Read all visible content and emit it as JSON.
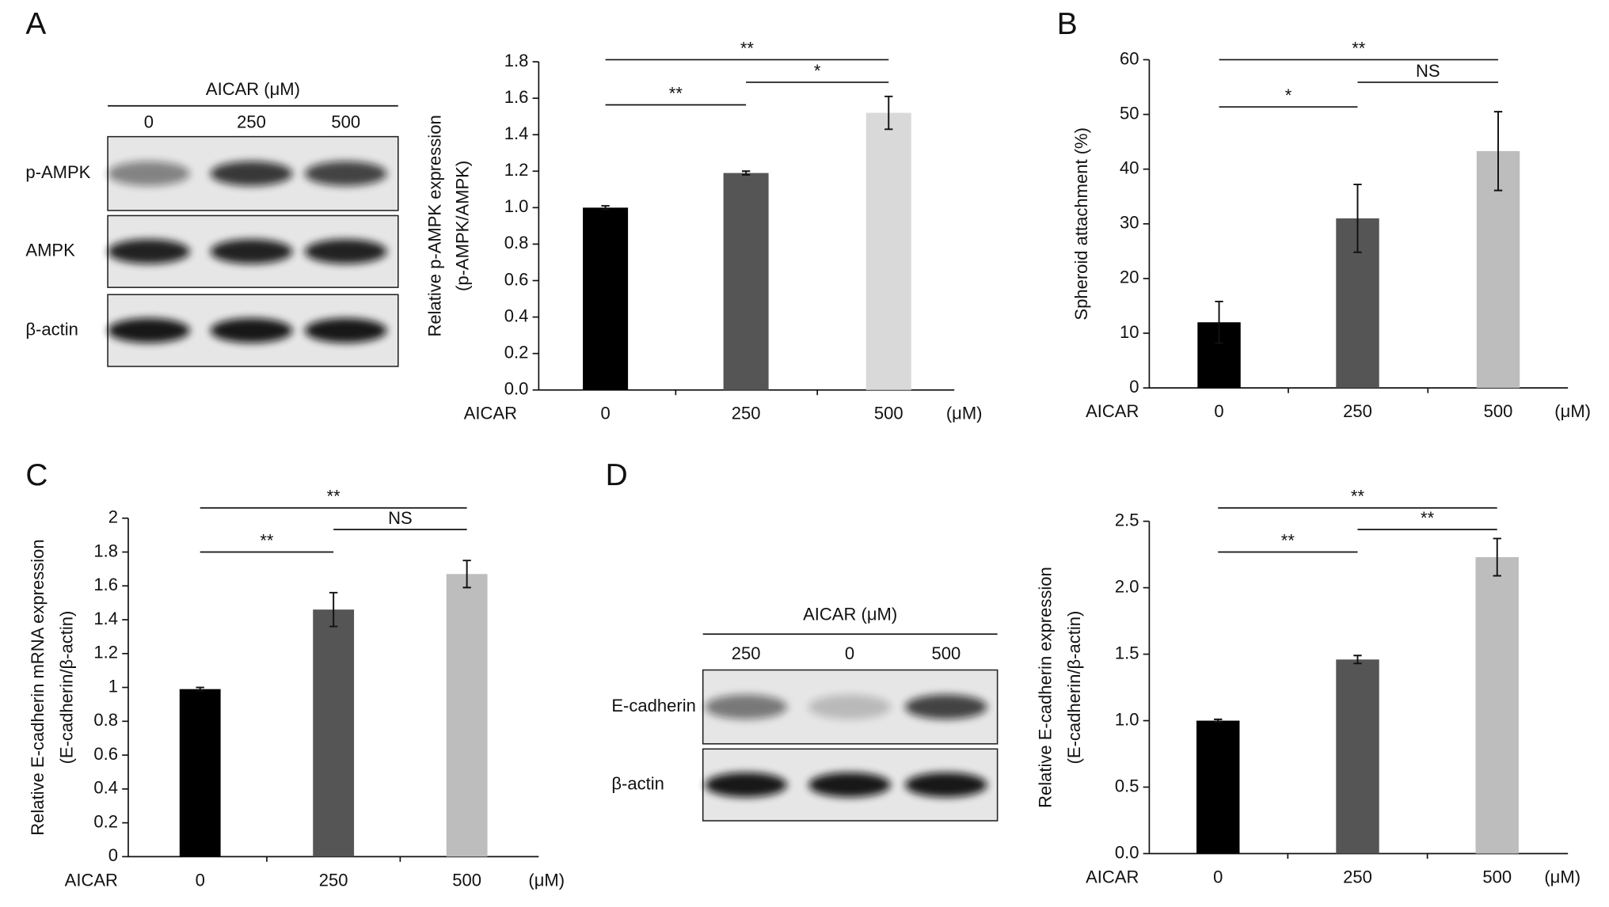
{
  "chart_data": [
    {
      "type": "bar",
      "panel": "A",
      "ylabel": [
        "Relative p-AMPK expression",
        "(p-AMPK/AMPK)"
      ],
      "xlabel": "AICAR",
      "unit": "(μM)",
      "categories": [
        "0",
        "250",
        "500"
      ],
      "values": [
        1.0,
        1.19,
        1.52
      ],
      "errors": [
        0.01,
        0.01,
        0.09
      ],
      "colors": [
        "#000000",
        "#555555",
        "#d9d9d9"
      ],
      "ylim": [
        0,
        1.8
      ],
      "yticks": [
        {
          "value": 0,
          "label": "0.0"
        },
        0.2,
        0.4,
        0.6,
        0.8,
        {
          "value": 1,
          "label": "1.0"
        },
        1.2,
        1.4,
        1.6,
        1.8
      ],
      "annotations": [
        {
          "text": "**",
          "from": 0,
          "to": 2
        },
        {
          "text": "**",
          "from": 0,
          "to": 1
        },
        {
          "text": "*",
          "from": 1,
          "to": 2
        }
      ]
    },
    {
      "type": "bar",
      "panel": "B",
      "ylabel": [
        "Spheroid attachment (%)"
      ],
      "xlabel": "AICAR",
      "unit": "(μM)",
      "categories": [
        "0",
        "250",
        "500"
      ],
      "values": [
        12,
        31,
        43.3
      ],
      "errors": [
        3.8,
        6.2,
        7.2
      ],
      "colors": [
        "#000000",
        "#555555",
        "#bdbdbd"
      ],
      "ylim": [
        0,
        60
      ],
      "yticks": [
        0,
        10,
        20,
        30,
        40,
        50,
        60
      ],
      "annotations": [
        {
          "text": "**",
          "from": 0,
          "to": 2
        },
        {
          "text": "*",
          "from": 0,
          "to": 1
        },
        {
          "text": "NS",
          "from": 1,
          "to": 2
        }
      ]
    },
    {
      "type": "bar",
      "panel": "C",
      "ylabel": [
        "Relative E-cadherin mRNA expression",
        "(E-cadherin/β-actin)"
      ],
      "xlabel": "AICAR",
      "unit": "(μM)",
      "categories": [
        "0",
        "250",
        "500"
      ],
      "values": [
        0.99,
        1.46,
        1.67
      ],
      "errors": [
        0.01,
        0.1,
        0.08
      ],
      "colors": [
        "#000000",
        "#555555",
        "#bdbdbd"
      ],
      "ylim": [
        0,
        2
      ],
      "yticks": [
        0,
        0.2,
        0.4,
        0.6,
        0.8,
        1,
        1.2,
        1.4,
        1.6,
        1.8,
        2
      ],
      "annotations": [
        {
          "text": "**",
          "from": 0,
          "to": 2
        },
        {
          "text": "**",
          "from": 0,
          "to": 1
        },
        {
          "text": "NS",
          "from": 1,
          "to": 2
        }
      ]
    },
    {
      "type": "bar",
      "panel": "D",
      "ylabel": [
        "Relative E-cadherin expression",
        "(E-cadherin/β-actin)"
      ],
      "xlabel": "AICAR",
      "unit": "(μM)",
      "categories": [
        "0",
        "250",
        "500"
      ],
      "values": [
        1.0,
        1.46,
        2.23
      ],
      "errors": [
        0.01,
        0.03,
        0.14
      ],
      "colors": [
        "#000000",
        "#555555",
        "#bdbdbd"
      ],
      "ylim": [
        0,
        2.5
      ],
      "yticks": [
        {
          "value": 0,
          "label": "0.0"
        },
        0.5,
        {
          "value": 1,
          "label": "1.0"
        },
        1.5,
        {
          "value": 2,
          "label": "2.0"
        },
        2.5
      ],
      "annotations": [
        {
          "text": "**",
          "from": 0,
          "to": 2
        },
        {
          "text": "**",
          "from": 0,
          "to": 1
        },
        {
          "text": "**",
          "from": 1,
          "to": 2
        }
      ]
    }
  ],
  "blots": [
    {
      "title": "AICAR (μM)",
      "lanes": [
        "0",
        "250",
        "500"
      ],
      "rows": [
        "p-AMPK",
        "AMPK",
        "β-actin"
      ]
    },
    {
      "title": "AICAR (μM)",
      "lanes": [
        "250",
        "0",
        "500"
      ],
      "rows": [
        "E-cadherin",
        "β-actin"
      ]
    }
  ]
}
